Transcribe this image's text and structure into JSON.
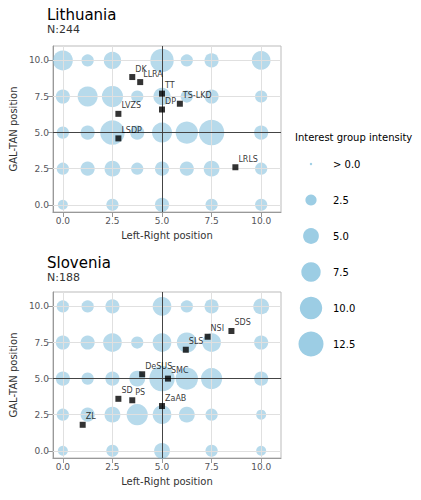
{
  "chart_data": [
    {
      "type": "scatter",
      "title": "Lithuania",
      "subtitle": "N:244",
      "x_label": "Left-Right position",
      "y_label": "GAL-TAN position",
      "xlim": [
        -0.5,
        11.0
      ],
      "ylim": [
        -0.5,
        11.0
      ],
      "xticks": [
        {
          "value": 0.0,
          "label": "0.0"
        },
        {
          "value": 2.5,
          "label": "2.5"
        },
        {
          "value": 5.0,
          "label": "5.0"
        },
        {
          "value": 7.5,
          "label": "7.5"
        },
        {
          "value": 10.0,
          "label": "10.0"
        }
      ],
      "yticks": [
        {
          "value": 0.0,
          "label": "0.0"
        },
        {
          "value": 2.5,
          "label": "2.5"
        },
        {
          "value": 5.0,
          "label": "5.0"
        },
        {
          "value": 7.5,
          "label": "7.5"
        },
        {
          "value": 10.0,
          "label": "10.0"
        }
      ],
      "grid": true,
      "reference_lines": {
        "x": 5.0,
        "y": 5.0
      },
      "series": [
        {
          "type": "bubble",
          "color": "#7BBCDB",
          "x": [
            0.0,
            1.25,
            2.5,
            5.0,
            6.25,
            7.5,
            10.0,
            0.0,
            1.25,
            2.5,
            3.75,
            5.0,
            6.25,
            7.5,
            10.0,
            0.0,
            1.25,
            2.5,
            3.75,
            5.0,
            6.25,
            7.5,
            10.0,
            0.0,
            1.25,
            2.5,
            3.75,
            5.0,
            6.25,
            7.5,
            10.0,
            0.0,
            2.5,
            5.0,
            7.5,
            10.0
          ],
          "y": [
            10.0,
            10.0,
            10.0,
            10.0,
            10.0,
            10.0,
            10.0,
            7.5,
            7.5,
            7.5,
            7.5,
            7.5,
            7.5,
            7.5,
            7.5,
            5.0,
            5.0,
            5.0,
            5.0,
            5.0,
            5.0,
            5.0,
            5.0,
            2.5,
            2.5,
            2.5,
            2.5,
            2.5,
            2.5,
            2.5,
            2.5,
            0.0,
            0.0,
            0.0,
            0.0,
            0.0
          ],
          "sizes": [
            8,
            3,
            6,
            11,
            3,
            4,
            7,
            4,
            8,
            9,
            3,
            6,
            3,
            4,
            3,
            3,
            4,
            12,
            4,
            8,
            10,
            13,
            4,
            3,
            4,
            5,
            3,
            4,
            4,
            5,
            3,
            2,
            3,
            4,
            3,
            3
          ]
        },
        {
          "type": "scatter",
          "marker": "square",
          "color": "black",
          "x": [
            3.5,
            3.9,
            5.0,
            5.9,
            2.8,
            5.0,
            2.8,
            8.7
          ],
          "y": [
            8.85,
            8.5,
            7.7,
            7.0,
            6.3,
            6.6,
            4.6,
            2.6
          ],
          "labels": [
            "DK",
            "LLRA",
            "TT",
            "TS-LKD",
            "LVZS",
            "DP",
            "LSDP",
            "LRLS"
          ]
        }
      ],
      "size_legend": {
        "title": "Interest group intensity",
        "values": [
          0.3,
          2.5,
          5.0,
          7.5,
          10.0,
          12.5
        ],
        "labels": [
          "> 0.0",
          "2.5",
          "5.0",
          "7.5",
          "10.0",
          "12.5"
        ]
      }
    },
    {
      "type": "scatter",
      "title": "Slovenia",
      "subtitle": "N:188",
      "x_label": "Left-Right position",
      "y_label": "GAL-TAN position",
      "xlim": [
        -0.5,
        11.0
      ],
      "ylim": [
        -0.5,
        11.0
      ],
      "xticks": [
        {
          "value": 0.0,
          "label": "0.0"
        },
        {
          "value": 2.5,
          "label": "2.5"
        },
        {
          "value": 5.0,
          "label": "5.0"
        },
        {
          "value": 7.5,
          "label": "7.5"
        },
        {
          "value": 10.0,
          "label": "10.0"
        }
      ],
      "yticks": [
        {
          "value": 0.0,
          "label": "0.0"
        },
        {
          "value": 2.5,
          "label": "2.5"
        },
        {
          "value": 5.0,
          "label": "5.0"
        },
        {
          "value": 7.5,
          "label": "7.5"
        },
        {
          "value": 10.0,
          "label": "10.0"
        }
      ],
      "grid": true,
      "reference_lines": {
        "x": 5.0,
        "y": 5.0
      },
      "series": [
        {
          "type": "bubble",
          "color": "#7BBCDB",
          "x": [
            0.0,
            1.25,
            2.5,
            5.0,
            6.25,
            7.5,
            10.0,
            0.0,
            1.25,
            2.5,
            3.75,
            5.0,
            6.25,
            7.5,
            10.0,
            0.0,
            1.25,
            2.5,
            3.75,
            5.0,
            6.25,
            7.5,
            10.0,
            0.0,
            1.25,
            2.5,
            3.75,
            5.0,
            6.25,
            7.5,
            10.0,
            0.0,
            2.5,
            5.0,
            7.5,
            10.0
          ],
          "y": [
            10.0,
            10.0,
            10.0,
            10.0,
            10.0,
            10.0,
            10.0,
            7.5,
            7.5,
            7.5,
            7.5,
            7.5,
            7.5,
            7.5,
            7.5,
            5.0,
            5.0,
            5.0,
            5.0,
            5.0,
            5.0,
            5.0,
            5.0,
            2.5,
            2.5,
            2.5,
            2.5,
            2.5,
            2.5,
            2.5,
            2.5,
            0.0,
            0.0,
            0.0,
            0.0,
            0.0
          ],
          "sizes": [
            3,
            3,
            4,
            7,
            3,
            4,
            5,
            4,
            4,
            7,
            3,
            7,
            8,
            7,
            4,
            4,
            3,
            4,
            5,
            13,
            10,
            9,
            4,
            3,
            4,
            5,
            9,
            7,
            5,
            3,
            2,
            2,
            3,
            5,
            3,
            2
          ]
        },
        {
          "type": "scatter",
          "marker": "square",
          "color": "black",
          "x": [
            8.5,
            7.3,
            6.2,
            4.0,
            5.3,
            2.8,
            3.5,
            5.0,
            1.0
          ],
          "y": [
            8.3,
            7.9,
            7.0,
            5.3,
            5.0,
            3.6,
            3.5,
            3.1,
            1.8
          ],
          "labels": [
            "SDS",
            "NSI",
            "SLS",
            "DeSUS",
            "SMC",
            "SD",
            "PS",
            "ZaAB",
            "ZL"
          ]
        }
      ]
    }
  ]
}
